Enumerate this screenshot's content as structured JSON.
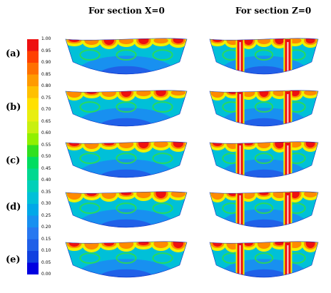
{
  "titles": {
    "x_section": "For section X=0",
    "z_section": "For section Z=0"
  },
  "rows": [
    {
      "label": "(a)"
    },
    {
      "label": "(b)"
    },
    {
      "label": "(c)"
    },
    {
      "label": "(d)"
    },
    {
      "label": "(e)"
    }
  ],
  "colorbar": {
    "ticks": [
      "1.00",
      "0.95",
      "0.90",
      "0.85",
      "0.80",
      "0.75",
      "0.70",
      "0.65",
      "0.60",
      "0.55",
      "0.50",
      "0.45",
      "0.40",
      "0.35",
      "0.30",
      "0.25",
      "0.20",
      "0.15",
      "0.10",
      "0.05",
      "0.00"
    ],
    "colors": [
      "#ee1010",
      "#ff4000",
      "#ff7000",
      "#ff9a00",
      "#ffc000",
      "#ffe000",
      "#e8ee10",
      "#c8f010",
      "#90f000",
      "#30e020",
      "#00dd60",
      "#00d890",
      "#00d0b8",
      "#00c0d8",
      "#00a8e8",
      "#1890f0",
      "#2878f0",
      "#2060e8",
      "#1040e0",
      "#0000e0"
    ]
  },
  "palette": {
    "bg": "#00c0d8",
    "mid": "#1890f0",
    "deep": "#2060e8",
    "core": "#0010d8",
    "hot": "#ee1010",
    "warm": "#ff8a00",
    "yellow": "#f0f000",
    "green": "#30e040"
  }
}
